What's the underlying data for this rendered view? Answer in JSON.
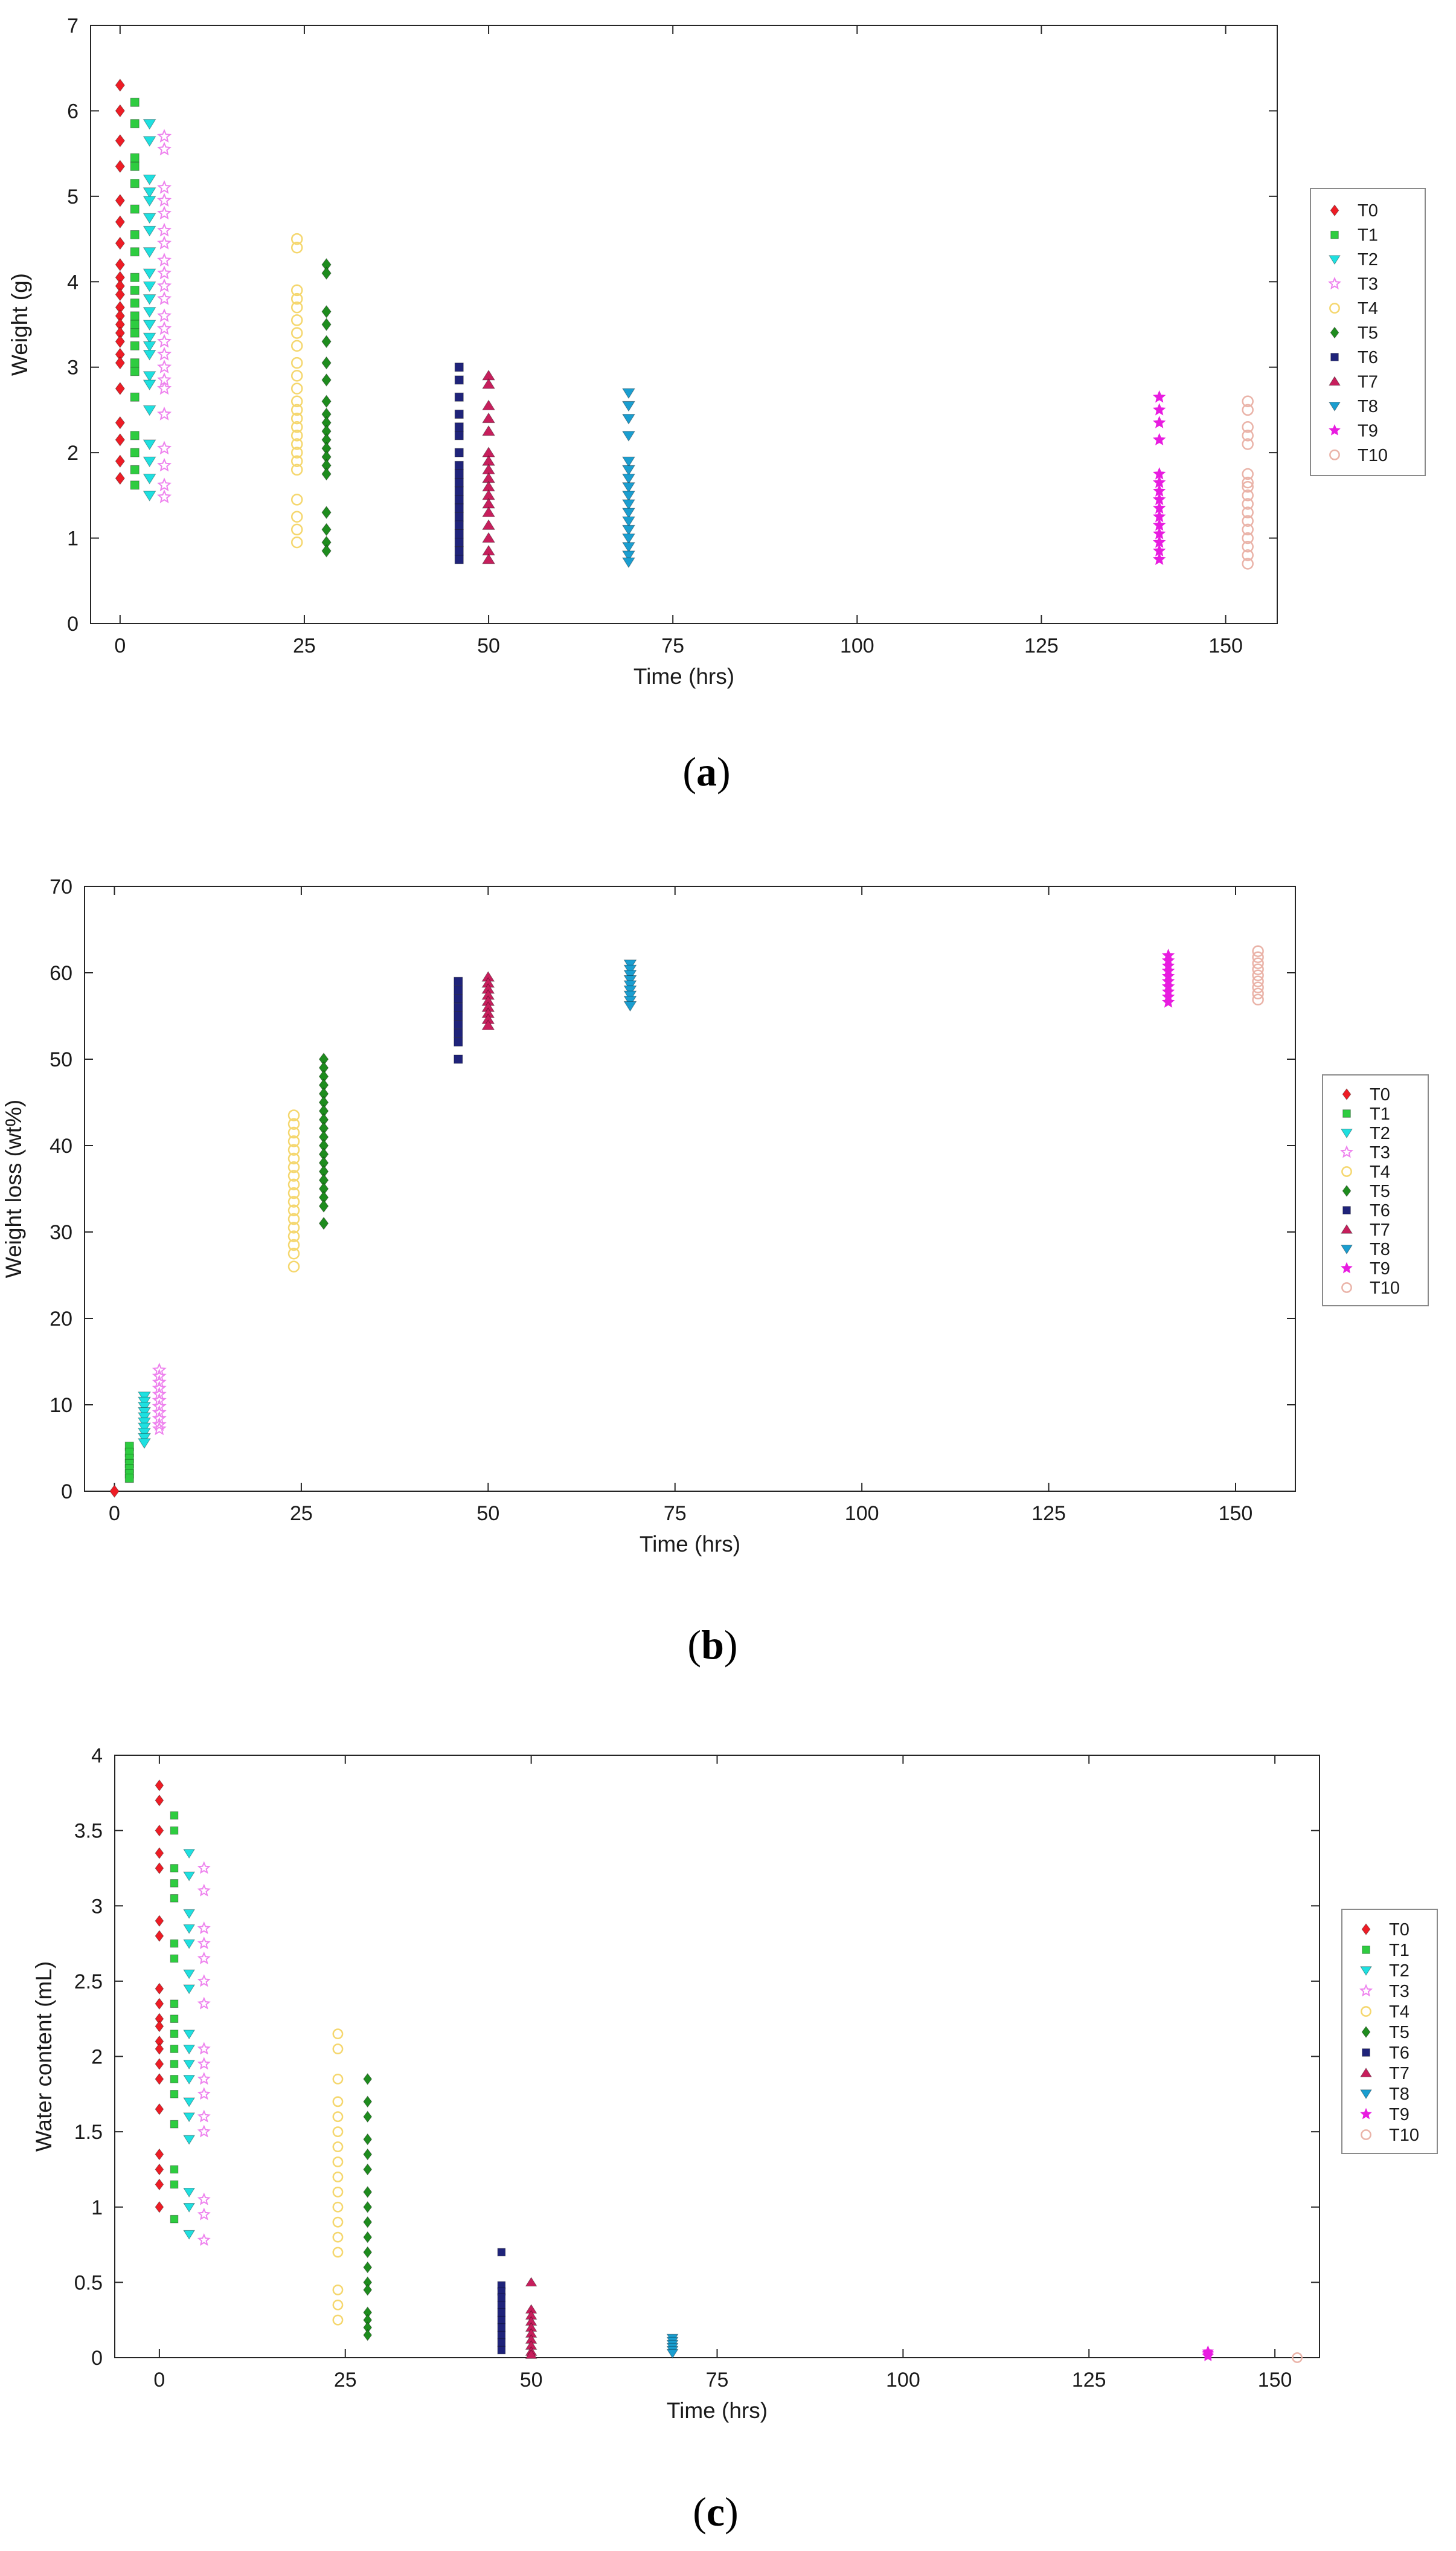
{
  "chart_data": [
    {
      "panel_label": "a",
      "type": "scatter",
      "xlabel": "Time (hrs)",
      "ylabel": "Weight (g)",
      "xlim": [
        -4,
        157
      ],
      "ylim": [
        0,
        7
      ],
      "xticks": [
        0,
        25,
        50,
        75,
        100,
        125,
        150
      ],
      "yticks": [
        0,
        1,
        2,
        3,
        4,
        5,
        6,
        7
      ],
      "legend_position": "right",
      "series": [
        {
          "name": "T0",
          "x": 0,
          "values": [
            6.3,
            6.0,
            5.65,
            5.35,
            4.95,
            4.7,
            4.45,
            4.2,
            4.05,
            3.95,
            3.85,
            3.7,
            3.6,
            3.5,
            3.4,
            3.3,
            3.15,
            3.05,
            2.75,
            2.35,
            2.15,
            1.9,
            1.7
          ],
          "color": "#ee1c25",
          "marker": "diamond"
        },
        {
          "name": "T1",
          "x": 2,
          "values": [
            6.1,
            5.85,
            5.45,
            5.35,
            5.15,
            4.85,
            4.55,
            4.35,
            4.05,
            3.9,
            3.75,
            3.6,
            3.5,
            3.4,
            3.25,
            3.05,
            2.95,
            2.65,
            2.2,
            2.0,
            1.8,
            1.62
          ],
          "color": "#2ecc40",
          "marker": "square"
        },
        {
          "name": "T2",
          "x": 4,
          "values": [
            5.85,
            5.65,
            5.2,
            5.05,
            4.95,
            4.75,
            4.6,
            4.35,
            4.1,
            3.95,
            3.8,
            3.65,
            3.5,
            3.35,
            3.25,
            3.15,
            2.9,
            2.8,
            2.5,
            2.1,
            1.9,
            1.7,
            1.5
          ],
          "color": "#1ee0e0",
          "marker": "triangle-down"
        },
        {
          "name": "T3",
          "x": 6,
          "values": [
            5.7,
            5.55,
            5.1,
            4.95,
            4.8,
            4.6,
            4.45,
            4.25,
            4.1,
            3.95,
            3.8,
            3.6,
            3.45,
            3.3,
            3.15,
            3.0,
            2.85,
            2.75,
            2.45,
            2.05,
            1.85,
            1.62,
            1.48
          ],
          "color": "#ee82ee",
          "marker": "star-open"
        },
        {
          "name": "T4",
          "x": 24,
          "values": [
            4.5,
            4.4,
            3.9,
            3.8,
            3.7,
            3.55,
            3.4,
            3.25,
            3.05,
            2.9,
            2.75,
            2.6,
            2.5,
            2.4,
            2.3,
            2.2,
            2.1,
            2.0,
            1.9,
            1.8,
            1.45,
            1.25,
            1.1,
            0.95
          ],
          "color": "#f5d76e",
          "marker": "circle-open"
        },
        {
          "name": "T5",
          "x": 28,
          "values": [
            4.2,
            4.1,
            3.65,
            3.5,
            3.3,
            3.05,
            2.85,
            2.6,
            2.45,
            2.35,
            2.25,
            2.15,
            2.05,
            1.95,
            1.85,
            1.75,
            1.3,
            1.1,
            0.95,
            0.85
          ],
          "color": "#1e8c1e",
          "marker": "diamond"
        },
        {
          "name": "T6",
          "x": 46,
          "values": [
            3.0,
            2.85,
            2.65,
            2.45,
            2.3,
            2.2,
            2.0,
            1.85,
            1.75,
            1.65,
            1.55,
            1.45,
            1.35,
            1.25,
            1.15,
            1.05,
            0.95,
            0.85,
            0.75
          ],
          "color": "#1f237a",
          "marker": "square"
        },
        {
          "name": "T7",
          "x": 50,
          "values": [
            2.9,
            2.8,
            2.55,
            2.4,
            2.25,
            2.0,
            1.9,
            1.8,
            1.7,
            1.6,
            1.5,
            1.4,
            1.3,
            1.15,
            1.0,
            0.85,
            0.75
          ],
          "color": "#c71e5c",
          "marker": "triangle-up"
        },
        {
          "name": "T8",
          "x": 69,
          "values": [
            2.7,
            2.55,
            2.4,
            2.2,
            1.9,
            1.8,
            1.7,
            1.6,
            1.5,
            1.4,
            1.3,
            1.2,
            1.1,
            1.0,
            0.9,
            0.8,
            0.72
          ],
          "color": "#1a9ed0",
          "marker": "triangle-down"
        },
        {
          "name": "T9",
          "x": 141,
          "values": [
            2.65,
            2.5,
            2.35,
            2.15,
            1.75,
            1.65,
            1.55,
            1.45,
            1.35,
            1.25,
            1.15,
            1.05,
            0.95,
            0.85,
            0.75
          ],
          "color": "#e81ce0",
          "marker": "star"
        },
        {
          "name": "T10",
          "x": 153,
          "values": [
            2.6,
            2.5,
            2.3,
            2.2,
            2.1,
            1.75,
            1.65,
            1.6,
            1.5,
            1.4,
            1.3,
            1.2,
            1.1,
            1.0,
            0.9,
            0.8,
            0.7
          ],
          "color": "#eab3a8",
          "marker": "circle-open"
        }
      ]
    },
    {
      "panel_label": "b",
      "type": "scatter",
      "xlabel": "Time (hrs)",
      "ylabel": "Weight loss (wt%)",
      "xlim": [
        -4,
        158
      ],
      "ylim": [
        0,
        70
      ],
      "xticks": [
        0,
        25,
        50,
        75,
        100,
        125,
        150
      ],
      "yticks": [
        0,
        10,
        20,
        30,
        40,
        50,
        60,
        70
      ],
      "legend_position": "right",
      "series": [
        {
          "name": "T0",
          "x": 0,
          "values": [
            0
          ],
          "color": "#ee1c25",
          "marker": "diamond"
        },
        {
          "name": "T1",
          "x": 2,
          "values": [
            5.2,
            4.5,
            3.8,
            3.2,
            2.6,
            2.0,
            1.5
          ],
          "color": "#2ecc40",
          "marker": "square"
        },
        {
          "name": "T2",
          "x": 4,
          "values": [
            11.0,
            10.4,
            9.8,
            9.2,
            8.6,
            8.0,
            7.4,
            6.8,
            6.2,
            5.6
          ],
          "color": "#1ee0e0",
          "marker": "triangle-down"
        },
        {
          "name": "T3",
          "x": 6,
          "values": [
            14.0,
            13.3,
            12.6,
            11.9,
            11.2,
            10.5,
            9.8,
            9.1,
            8.4,
            7.7,
            7.2
          ],
          "color": "#ee82ee",
          "marker": "star-open"
        },
        {
          "name": "T4",
          "x": 24,
          "values": [
            43.5,
            42.5,
            41.5,
            40.5,
            39.5,
            38.5,
            37.5,
            36.5,
            35.5,
            34.5,
            33.5,
            32.5,
            31.5,
            30.5,
            29.5,
            28.5,
            27.5,
            26.0
          ],
          "color": "#f5d76e",
          "marker": "circle-open"
        },
        {
          "name": "T5",
          "x": 28,
          "values": [
            50.0,
            49.0,
            48.0,
            47.0,
            46.0,
            45.0,
            44.0,
            43.0,
            42.0,
            41.0,
            40.0,
            39.0,
            38.0,
            37.0,
            36.0,
            35.0,
            34.0,
            33.0,
            31.0
          ],
          "color": "#1e8c1e",
          "marker": "diamond"
        },
        {
          "name": "T6",
          "x": 46,
          "values": [
            59.0,
            58.0,
            57.0,
            56.0,
            55.0,
            54.0,
            53.0,
            52.0,
            50.0
          ],
          "color": "#1f237a",
          "marker": "square"
        },
        {
          "name": "T7",
          "x": 50,
          "values": [
            59.5,
            58.8,
            58.1,
            57.4,
            56.7,
            56.0,
            55.3,
            54.6,
            53.9
          ],
          "color": "#c71e5c",
          "marker": "triangle-up"
        },
        {
          "name": "T8",
          "x": 69,
          "values": [
            61.0,
            60.4,
            59.8,
            59.2,
            58.6,
            58.0,
            57.4,
            56.8,
            56.2
          ],
          "color": "#1a9ed0",
          "marker": "triangle-down"
        },
        {
          "name": "T9",
          "x": 141,
          "values": [
            62.0,
            61.4,
            60.8,
            60.2,
            59.6,
            59.0,
            58.4,
            57.8,
            57.2,
            56.6
          ],
          "color": "#e81ce0",
          "marker": "star"
        },
        {
          "name": "T10",
          "x": 153,
          "values": [
            62.5,
            61.8,
            61.1,
            60.4,
            59.7,
            59.0,
            58.3,
            57.6,
            56.9
          ],
          "color": "#eab3a8",
          "marker": "circle-open"
        }
      ]
    },
    {
      "panel_label": "c",
      "type": "scatter",
      "xlabel": "Time (hrs)",
      "ylabel": "Water content (mL)",
      "xlim": [
        -6,
        156
      ],
      "ylim": [
        0,
        4
      ],
      "xticks": [
        0,
        25,
        50,
        75,
        100,
        125,
        150
      ],
      "yticks": [
        0,
        0.5,
        1,
        1.5,
        2,
        2.5,
        3,
        3.5,
        4
      ],
      "legend_position": "right",
      "series": [
        {
          "name": "T0",
          "x": 0,
          "values": [
            3.8,
            3.7,
            3.5,
            3.35,
            3.25,
            2.9,
            2.8,
            2.45,
            2.35,
            2.25,
            2.2,
            2.1,
            2.05,
            1.95,
            1.85,
            1.65,
            1.35,
            1.25,
            1.15,
            1.0
          ],
          "color": "#ee1c25",
          "marker": "diamond"
        },
        {
          "name": "T1",
          "x": 2,
          "values": [
            3.6,
            3.5,
            3.25,
            3.15,
            3.05,
            2.75,
            2.65,
            2.35,
            2.25,
            2.15,
            2.05,
            1.95,
            1.85,
            1.75,
            1.55,
            1.25,
            1.15,
            0.92
          ],
          "color": "#2ecc40",
          "marker": "square"
        },
        {
          "name": "T2",
          "x": 4,
          "values": [
            3.35,
            3.2,
            2.95,
            2.85,
            2.75,
            2.55,
            2.45,
            2.15,
            2.05,
            1.95,
            1.85,
            1.7,
            1.6,
            1.45,
            1.1,
            1.0,
            0.82
          ],
          "color": "#1ee0e0",
          "marker": "triangle-down"
        },
        {
          "name": "T3",
          "x": 6,
          "values": [
            3.25,
            3.1,
            2.85,
            2.75,
            2.65,
            2.5,
            2.35,
            2.05,
            1.95,
            1.85,
            1.75,
            1.6,
            1.5,
            1.05,
            0.95,
            0.78
          ],
          "color": "#ee82ee",
          "marker": "star-open"
        },
        {
          "name": "T4",
          "x": 24,
          "values": [
            2.15,
            2.05,
            1.85,
            1.7,
            1.6,
            1.5,
            1.4,
            1.3,
            1.2,
            1.1,
            1.0,
            0.9,
            0.8,
            0.7,
            0.45,
            0.35,
            0.25
          ],
          "color": "#f5d76e",
          "marker": "circle-open"
        },
        {
          "name": "T5",
          "x": 28,
          "values": [
            1.85,
            1.7,
            1.6,
            1.45,
            1.35,
            1.25,
            1.1,
            1.0,
            0.9,
            0.8,
            0.7,
            0.6,
            0.5,
            0.45,
            0.3,
            0.25,
            0.2,
            0.15
          ],
          "color": "#1e8c1e",
          "marker": "diamond"
        },
        {
          "name": "T6",
          "x": 46,
          "values": [
            0.7,
            0.48,
            0.44,
            0.4,
            0.35,
            0.3,
            0.25,
            0.2,
            0.15,
            0.1,
            0.05
          ],
          "color": "#1f237a",
          "marker": "square"
        },
        {
          "name": "T7",
          "x": 50,
          "values": [
            0.5,
            0.32,
            0.28,
            0.24,
            0.2,
            0.16,
            0.12,
            0.08,
            0.04,
            0.02
          ],
          "color": "#c71e5c",
          "marker": "triangle-up"
        },
        {
          "name": "T8",
          "x": 69,
          "values": [
            0.13,
            0.11,
            0.09,
            0.07,
            0.05,
            0.03
          ],
          "color": "#1a9ed0",
          "marker": "triangle-down"
        },
        {
          "name": "T9",
          "x": 141,
          "values": [
            0.04,
            0.03,
            0.02,
            0.01
          ],
          "color": "#e81ce0",
          "marker": "star"
        },
        {
          "name": "T10",
          "x": 153,
          "values": [
            0.0
          ],
          "color": "#eab3a8",
          "marker": "circle-open"
        }
      ]
    }
  ]
}
